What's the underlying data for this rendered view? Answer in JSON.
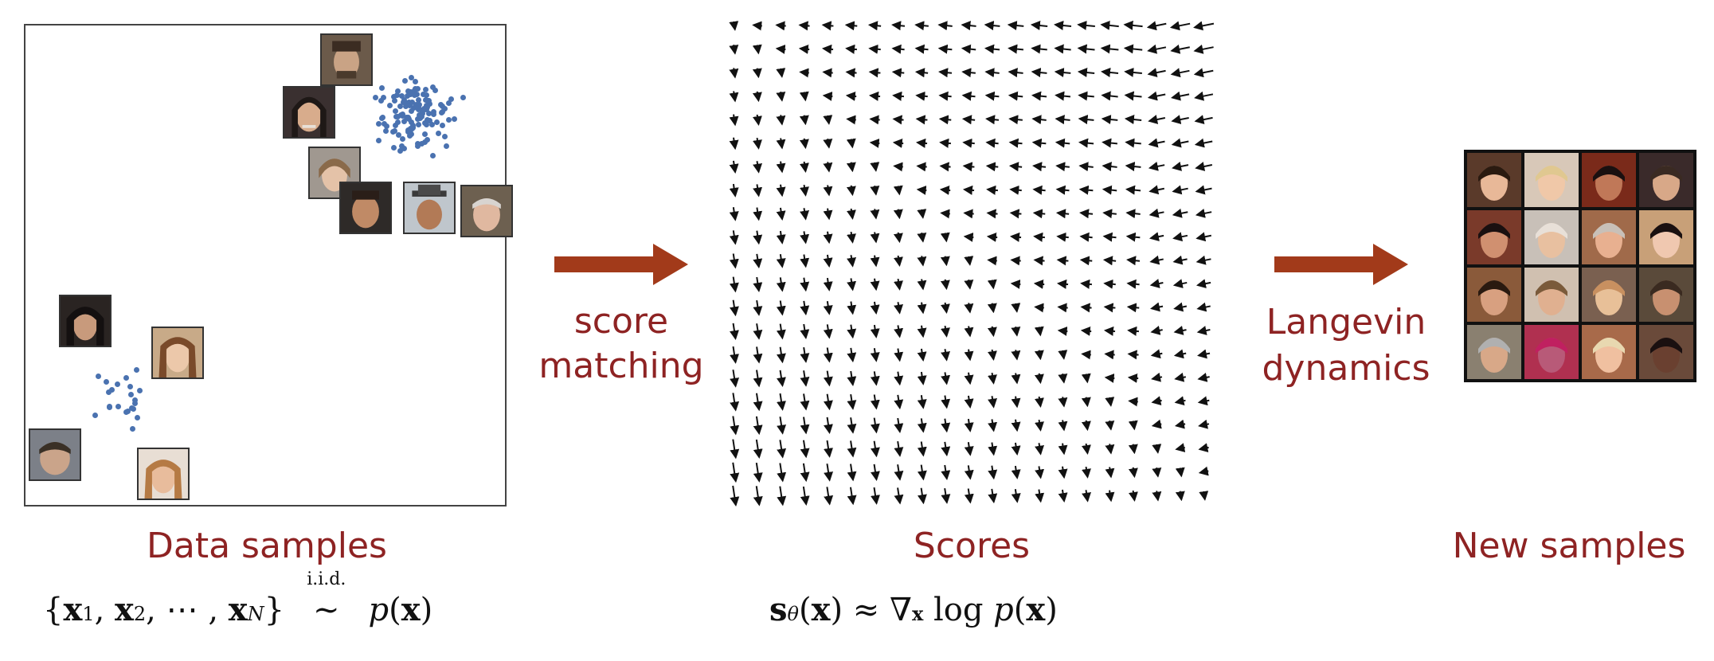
{
  "labels": {
    "data_samples": "Data samples",
    "score_matching_1": "score",
    "score_matching_2": "matching",
    "scores": "Scores",
    "langevin_1": "Langevin",
    "langevin_2": "dynamics",
    "new_samples": "New samples"
  },
  "math": {
    "left": "{x₁, x₂, ⋯ , x_N} ~ p(x)",
    "iid": "i.i.d.",
    "middle": "s_θ(x) ≈ ∇_x log p(x)"
  },
  "colors": {
    "label": "#8e2323",
    "arrow": "#a23a1a",
    "dots": "#4a72b0"
  },
  "icons": [
    "face-photo-icon",
    "vector-arrow-icon",
    "flow-arrow-icon"
  ]
}
